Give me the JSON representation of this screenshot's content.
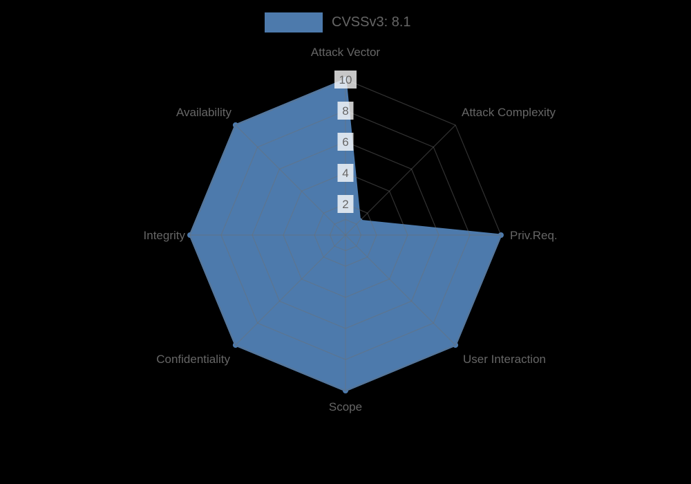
{
  "legend": {
    "label": "CVSSv3: 8.1"
  },
  "colors": {
    "background": "#000000",
    "series_fill": "#4d7aac",
    "series_border": "#4d7aac",
    "grid_line": "rgba(110,110,110,0.45)",
    "axis_label": "#666666",
    "tick_label": "#666666",
    "tick_backdrop": "rgba(255,255,255,0.78)"
  },
  "chart_data": {
    "type": "radar",
    "title": "",
    "legend_position": "top",
    "grid": true,
    "rlim": [
      0,
      10
    ],
    "categories": [
      "Attack Vector",
      "Attack Complexity",
      "Priv.Req.",
      "User Interaction",
      "Scope",
      "Confidentiality",
      "Integrity",
      "Availability"
    ],
    "series": [
      {
        "name": "CVSSv3: 8.1",
        "values": [
          10,
          1.3,
          10,
          10,
          10,
          10,
          10,
          10
        ]
      }
    ],
    "tick_values": [
      2,
      4,
      6,
      8,
      10
    ],
    "tick_labels": [
      "2",
      "4",
      "6",
      "8",
      "10"
    ],
    "grid_ring_values": [
      1,
      2,
      4,
      6,
      8,
      10
    ]
  }
}
